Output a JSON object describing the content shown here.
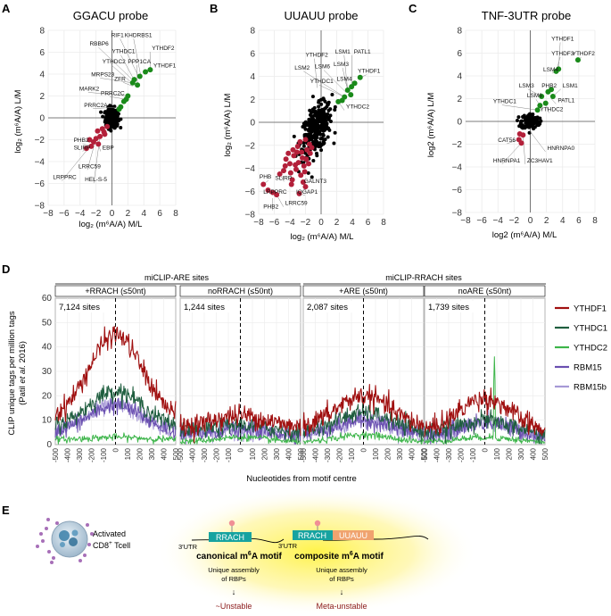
{
  "panel_letters": {
    "a": "A",
    "b": "B",
    "c": "C",
    "d": "D",
    "e": "E"
  },
  "colors": {
    "black_points": "#000000",
    "green_points": "#1a8a1a",
    "red_points": "#b3203a",
    "YTHDF1": "#a01010",
    "YTHDC1": "#1f5e3f",
    "YTHDC2": "#3db54a",
    "RBM15": "#6a4fb0",
    "RBM15b": "#a699d6",
    "grid": "#ebebeb",
    "teal_box": "#17a3a0",
    "orange_box": "#f0a36f",
    "dark_red_text": "#8b1a1a"
  },
  "chart_data": [
    {
      "type": "scatter",
      "title": "GGACU probe",
      "xlabel": "log₂ (m⁶A/A) M/L",
      "ylabel": "log₂ (m⁶A/A) L/M",
      "xlim": [
        -8,
        8
      ],
      "ylim": [
        -8,
        8
      ],
      "x_ticks": [
        "−8",
        "−6",
        "−4",
        "−2",
        "0",
        "2",
        "4",
        "6",
        "8"
      ],
      "y_ticks": [
        "8",
        "6",
        "4",
        "2",
        "0",
        "−2",
        "−4",
        "−6",
        "−8"
      ],
      "cloud": {
        "center": [
          0,
          0
        ],
        "spread": [
          0.4,
          0.45
        ],
        "n": 260
      },
      "green_points": [
        [
          2.8,
          3.5
        ],
        [
          3.2,
          3.0
        ],
        [
          3.5,
          3.8
        ],
        [
          4.2,
          4.2
        ],
        [
          4.8,
          4.4
        ],
        [
          2.6,
          3.2
        ],
        [
          2.0,
          2.0
        ],
        [
          1.5,
          1.5
        ],
        [
          1.1,
          1.0
        ],
        [
          0.9,
          0.8
        ],
        [
          1.8,
          1.7
        ]
      ],
      "red_points": [
        [
          -3.2,
          -2.8
        ],
        [
          -2.6,
          -2.6
        ],
        [
          -2.0,
          -1.9
        ],
        [
          -1.5,
          -1.7
        ],
        [
          -1.0,
          -1.3
        ],
        [
          -2.3,
          -2.2
        ],
        [
          -1.7,
          -2.4
        ],
        [
          -0.9,
          -1.5
        ],
        [
          -1.2,
          -1.0
        ],
        [
          -0.6,
          -0.8
        ],
        [
          -2.8,
          -2.0
        ],
        [
          -1.8,
          -1.2
        ]
      ],
      "labels": [
        {
          "text": "RIF1",
          "x": -0.1,
          "y": 7.4,
          "px": 3.4,
          "py": 3.7
        },
        {
          "text": "KHDRBS1",
          "x": 1.6,
          "y": 7.4,
          "px": 3.6,
          "py": 3.9
        },
        {
          "text": "RBBP6",
          "x": -2.8,
          "y": 6.6,
          "px": 2.7,
          "py": 3.4
        },
        {
          "text": "YTHDF2",
          "x": 5.0,
          "y": 6.2,
          "px": 4.8,
          "py": 4.4
        },
        {
          "text": "YTHDC1",
          "x": 0.0,
          "y": 5.9,
          "px": 2.9,
          "py": 3.3
        },
        {
          "text": "PPP1CA",
          "x": 2.0,
          "y": 5.0,
          "px": 3.2,
          "py": 3.1
        },
        {
          "text": "YTHDF1",
          "x": 5.2,
          "y": 4.6,
          "px": 4.2,
          "py": 4.2
        },
        {
          "text": "YTHDC2",
          "x": -1.2,
          "y": 5.0,
          "px": 2.8,
          "py": 3.0
        },
        {
          "text": "MRPS23",
          "x": -2.6,
          "y": 3.8,
          "px": 2.6,
          "py": 3.2
        },
        {
          "text": "ZFR",
          "x": 0.3,
          "y": 3.4,
          "px": 2.6,
          "py": 2.9
        },
        {
          "text": "MARK2",
          "x": -4.1,
          "y": 2.5,
          "px": 2.0,
          "py": 2.0
        },
        {
          "text": "PRRC2C",
          "x": -1.4,
          "y": 2.1,
          "px": 1.8,
          "py": 1.7
        },
        {
          "text": "PRRC2A",
          "x": -3.5,
          "y": 1.0,
          "px": 1.1,
          "py": 1.0
        },
        {
          "text": "PHB2",
          "x": -4.8,
          "y": -2.2,
          "px": -2.6,
          "py": -2.6
        },
        {
          "text": "SLIRP",
          "x": -4.8,
          "y": -2.9,
          "px": -3.2,
          "py": -2.8
        },
        {
          "text": "EBP",
          "x": -1.2,
          "y": -2.9,
          "px": -1.7,
          "py": -2.4
        },
        {
          "text": "LRRC59",
          "x": -4.2,
          "y": -4.6,
          "px": -2.0,
          "py": -1.9
        },
        {
          "text": "LRPPRC",
          "x": -7.4,
          "y": -5.6,
          "px": -2.3,
          "py": -2.2
        },
        {
          "text": "HEL-S-5",
          "x": -3.4,
          "y": -5.8,
          "px": -1.5,
          "py": -1.7
        }
      ]
    },
    {
      "type": "scatter",
      "title": "UUAUU probe",
      "xlabel": "log₂ (m⁶A/A) M/L",
      "ylabel": "log₂ (m⁶A/A) L/M",
      "xlim": [
        -8,
        8
      ],
      "ylim": [
        -8,
        8
      ],
      "x_ticks": [
        "−8",
        "−6",
        "−4",
        "−2",
        "0",
        "2",
        "4",
        "6",
        "8"
      ],
      "y_ticks": [
        "8",
        "6",
        "4",
        "2",
        "0",
        "−2",
        "−4",
        "−6",
        "−8"
      ],
      "cloud": {
        "center": [
          -0.6,
          -0.3
        ],
        "spread": [
          1.0,
          0.95
        ],
        "n": 320
      },
      "green_points": [
        [
          5.0,
          3.9
        ],
        [
          4.3,
          3.4
        ],
        [
          3.9,
          3.1
        ],
        [
          3.4,
          2.8
        ],
        [
          3.8,
          2.4
        ],
        [
          3.0,
          2.2
        ],
        [
          2.7,
          1.9
        ],
        [
          2.2,
          1.8
        ]
      ],
      "red_points": [
        [
          -7.4,
          -5.4
        ],
        [
          -6.8,
          -5.9
        ],
        [
          -6.2,
          -6.1
        ],
        [
          -5.3,
          -4.5
        ],
        [
          -4.8,
          -4.2
        ],
        [
          -5.7,
          -6.3
        ],
        [
          -3.8,
          -5.4
        ],
        [
          -2.3,
          -5.2
        ],
        [
          -2.0,
          -5.6
        ],
        [
          -2.8,
          -6.2
        ],
        [
          -4.0,
          -3.6
        ],
        [
          -3.5,
          -2.9
        ],
        [
          -2.9,
          -3.5
        ],
        [
          -2.5,
          -2.6
        ],
        [
          -4.5,
          -3.2
        ],
        [
          -3.2,
          -4.1
        ],
        [
          -2.2,
          -3.8
        ],
        [
          -1.8,
          -2.4
        ],
        [
          -2.7,
          -1.7
        ],
        [
          -1.5,
          -1.9
        ],
        [
          -3.6,
          -2.4
        ],
        [
          -2.4,
          -3.1
        ],
        [
          -3.9,
          -4.4
        ],
        [
          -1.9,
          -3.2
        ],
        [
          -3.0,
          -2.1
        ],
        [
          -1.4,
          -2.7
        ],
        [
          -4.2,
          -2.7
        ],
        [
          -2.6,
          -4.6
        ],
        [
          -3.3,
          -3.7
        ],
        [
          -1.6,
          -3.6
        ],
        [
          -2.0,
          -1.5
        ],
        [
          -4.6,
          -3.8
        ],
        [
          -3.7,
          -5.0
        ],
        [
          -2.1,
          -4.3
        ],
        [
          -1.2,
          -2.2
        ],
        [
          -3.1,
          -2.6
        ]
      ],
      "labels": [
        {
          "text": "YTHDF2",
          "x": -2.0,
          "y": 5.7,
          "px": -0.5,
          "py": 3.0
        },
        {
          "text": "LSM1",
          "x": 1.8,
          "y": 6.0,
          "px": 3.4,
          "py": 2.8
        },
        {
          "text": "PATL1",
          "x": 4.2,
          "y": 6.0,
          "px": 3.9,
          "py": 3.1
        },
        {
          "text": "LSM2",
          "x": -3.4,
          "y": 4.6,
          "px": 3.0,
          "py": 2.2
        },
        {
          "text": "LSM6",
          "x": -0.8,
          "y": 4.7,
          "px": 3.2,
          "py": 2.6
        },
        {
          "text": "LSM3",
          "x": 1.6,
          "y": 4.9,
          "px": 3.4,
          "py": 2.8
        },
        {
          "text": "YTHDF1",
          "x": 4.7,
          "y": 4.3,
          "px": 5.0,
          "py": 3.9
        },
        {
          "text": "YTHDC1",
          "x": -1.4,
          "y": 3.4,
          "px": 3.0,
          "py": 2.2
        },
        {
          "text": "LSM4",
          "x": 2.0,
          "y": 3.6,
          "px": 3.8,
          "py": 2.4
        },
        {
          "text": "YTHDC2",
          "x": 3.2,
          "y": 1.2,
          "px": 2.2,
          "py": 1.8
        },
        {
          "text": "PHB",
          "x": -7.9,
          "y": -4.9,
          "px": -7.4,
          "py": -5.4
        },
        {
          "text": "SLIRP",
          "x": -5.9,
          "y": -5.0,
          "px": -5.3,
          "py": -4.5
        },
        {
          "text": "GALNT3",
          "x": -2.2,
          "y": -5.3,
          "px": -2.3,
          "py": -5.2
        },
        {
          "text": "LRPPRC",
          "x": -7.4,
          "y": -6.2,
          "px": -6.8,
          "py": -5.9
        },
        {
          "text": "IQGAP1",
          "x": -3.2,
          "y": -6.2,
          "px": -2.8,
          "py": -6.2
        },
        {
          "text": "PHB2",
          "x": -7.4,
          "y": -7.5,
          "px": -6.2,
          "py": -6.6
        },
        {
          "text": "LRRC59",
          "x": -4.6,
          "y": -7.2,
          "px": -5.7,
          "py": -6.3
        }
      ]
    },
    {
      "type": "scatter",
      "title": "TNF-3UTR probe",
      "xlabel": "log2 (m⁶A/A) M/L",
      "ylabel": "log2 (m⁶A/A) L/M",
      "xlim": [
        -8,
        8
      ],
      "ylim": [
        -8,
        8
      ],
      "x_ticks": [
        "−8",
        "−6",
        "−4",
        "−2",
        "0",
        "2",
        "4",
        "6",
        "8"
      ],
      "y_ticks": [
        "8",
        "6",
        "4",
        "2",
        "0",
        "−2",
        "−4",
        "−6",
        "−8"
      ],
      "cloud": {
        "center": [
          0,
          0
        ],
        "spread": [
          0.55,
          0.35
        ],
        "n": 140
      },
      "green_points": [
        [
          5.9,
          5.4
        ],
        [
          3.5,
          4.6
        ],
        [
          3.2,
          4.4
        ],
        [
          2.6,
          2.8
        ],
        [
          2.2,
          2.6
        ],
        [
          2.8,
          2.2
        ],
        [
          1.4,
          2.2
        ],
        [
          1.2,
          1.4
        ],
        [
          1.9,
          1.6
        ],
        [
          0.9,
          1.0
        ]
      ],
      "red_points": [
        [
          -1.4,
          -1.6
        ],
        [
          -1.1,
          -1.9
        ],
        [
          -0.9,
          -1.2
        ],
        [
          -1.3,
          -1.1
        ]
      ],
      "labels": [
        {
          "text": "YTHDF1",
          "x": 2.6,
          "y": 7.1,
          "px": 3.5,
          "py": 4.6
        },
        {
          "text": "YTHDF3",
          "x": 2.6,
          "y": 5.8,
          "px": 3.2,
          "py": 4.4
        },
        {
          "text": "YTHDF2",
          "x": 5.2,
          "y": 5.8,
          "px": 5.9,
          "py": 5.4
        },
        {
          "text": "LSM4",
          "x": 1.6,
          "y": 4.4,
          "px": 3.0,
          "py": 4.3
        },
        {
          "text": "LSM3",
          "x": -1.4,
          "y": 3.0,
          "px": 1.4,
          "py": 2.2
        },
        {
          "text": "PHB2",
          "x": 1.4,
          "y": 3.0,
          "px": 2.2,
          "py": 2.6
        },
        {
          "text": "LSM1",
          "x": 4.0,
          "y": 3.0,
          "px": 2.8,
          "py": 2.2
        },
        {
          "text": "LSM6",
          "x": -0.4,
          "y": 2.1,
          "px": 1.2,
          "py": 1.4
        },
        {
          "text": "PATL1",
          "x": 3.4,
          "y": 1.7,
          "px": 2.6,
          "py": 2.0
        },
        {
          "text": "YTHDC1",
          "x": -4.6,
          "y": 1.6,
          "px": 0.9,
          "py": 1.0
        },
        {
          "text": "YTHDC2",
          "x": 1.2,
          "y": 0.9,
          "px": 1.9,
          "py": 1.6
        },
        {
          "text": "CAT56",
          "x": -4.0,
          "y": -1.8,
          "px": -1.4,
          "py": -1.6
        },
        {
          "text": "HNRNPA0",
          "x": 2.1,
          "y": -2.5,
          "px": 0.0,
          "py": -0.9
        },
        {
          "text": "HNRNPA1",
          "x": -4.6,
          "y": -3.6,
          "px": -1.1,
          "py": -1.9
        },
        {
          "text": "ZC3HAV1",
          "x": -0.4,
          "y": -3.6,
          "px": -0.9,
          "py": -1.2
        }
      ]
    },
    {
      "type": "line",
      "ylabel_line1": "CLIP unique tags per million tags",
      "ylabel_line2_pre": "(Patil ",
      "ylabel_line2_em": "et al.",
      "ylabel_line2_post": " 2016)",
      "xlabel": "Nucleotides from motif centre",
      "ylim": [
        0,
        60
      ],
      "x_ticks": [
        "-500",
        "-400",
        "-300",
        "-200",
        "-100",
        "0",
        "100",
        "200",
        "300",
        "400",
        "500"
      ],
      "group_labels": [
        "miCLIP-ARE sites",
        "miCLIP-RRACH sites"
      ],
      "facets": [
        {
          "strip": "+RRACH (≤50nt)",
          "sites": "7,124 sites",
          "peaks": {
            "YTHDF1": 45,
            "YTHDC1": 22,
            "RBM15": 16,
            "RBM15b": 16,
            "YTHDC2": 3
          },
          "base": {
            "YTHDF1": 10,
            "YTHDC1": 7,
            "RBM15": 5,
            "RBM15b": 5,
            "YTHDC2": 2
          },
          "spike": null
        },
        {
          "strip": "noRRACH (≤50nt)",
          "sites": "1,244 sites",
          "peaks": {
            "YTHDF1": 12,
            "YTHDC1": 8,
            "RBM15": 6,
            "RBM15b": 6,
            "YTHDC2": 3
          },
          "base": {
            "YTHDF1": 7,
            "YTHDC1": 5,
            "RBM15": 4,
            "RBM15b": 4,
            "YTHDC2": 1
          },
          "spike": null
        },
        {
          "strip": "+ARE (≤50nt)",
          "sites": "2,087 sites",
          "peaks": {
            "YTHDF1": 20,
            "YTHDC1": 13,
            "RBM15": 10,
            "RBM15b": 10,
            "YTHDC2": 4
          },
          "base": {
            "YTHDF1": 7,
            "YTHDC1": 5,
            "RBM15": 4,
            "RBM15b": 4,
            "YTHDC2": 1
          },
          "spike": null
        },
        {
          "strip": "noARE (≤50nt)",
          "sites": "1,739 sites",
          "peaks": {
            "YTHDF1": 19,
            "YTHDC1": 10,
            "RBM15": 9,
            "RBM15b": 9,
            "YTHDC2": 3
          },
          "base": {
            "YTHDF1": 5,
            "YTHDC1": 4,
            "RBM15": 3,
            "RBM15b": 3,
            "YTHDC2": 1
          },
          "spike": {
            "series": "YTHDC2",
            "x": 80,
            "value": 36
          }
        }
      ],
      "series": [
        {
          "name": "YTHDF1"
        },
        {
          "name": "YTHDC1"
        },
        {
          "name": "YTHDC2"
        },
        {
          "name": "RBM15"
        },
        {
          "name": "RBM15b"
        }
      ]
    }
  ],
  "panel_e": {
    "cell_label_1": "Activated",
    "cell_label_2_pre": "CD8",
    "cell_label_2_sup": "+",
    "cell_label_2_post": " Tcell",
    "utr_left": "3′UTR",
    "utr_right": "3′UTR",
    "box_rrach_left": "RRACH",
    "box_rrach_right": "RRACH",
    "box_uuauu": "UUAUU",
    "motif_left_pre": "canonical m",
    "motif_left_sup": "6",
    "motif_left_post": "A motif",
    "motif_right_pre": "composite m",
    "motif_right_sup": "6",
    "motif_right_post": "A motif",
    "assembly_1": "Unique assembly",
    "assembly_2": "of RBPs",
    "arrow": "↓",
    "outcome_left": "~Unstable",
    "outcome_right": "Meta-unstable"
  }
}
